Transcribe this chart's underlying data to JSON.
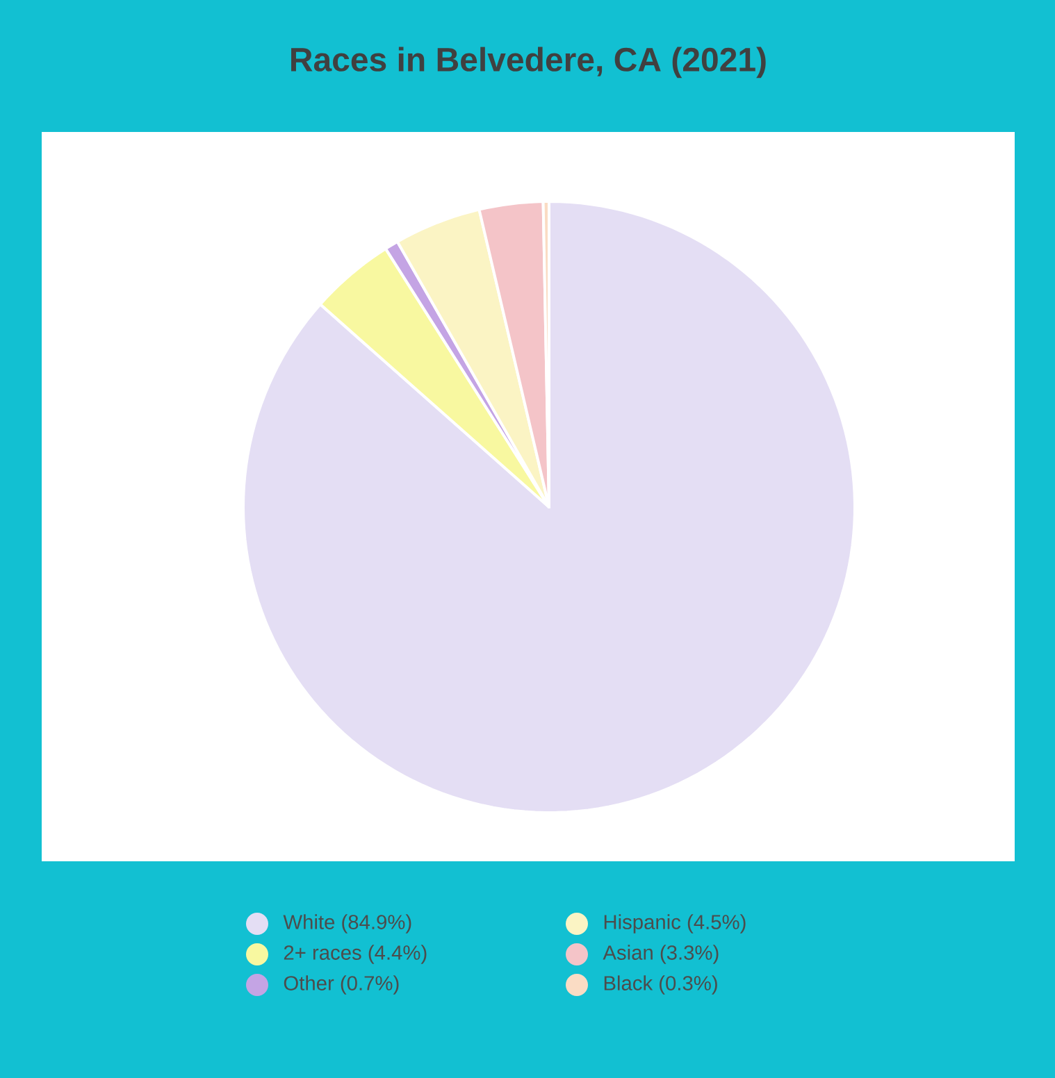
{
  "chart_data": {
    "type": "pie",
    "title": "Races in Belvedere, CA (2021)",
    "categories": [
      "White (84.9%)",
      "2+ races (4.4%)",
      "Other (0.7%)",
      "Hispanic (4.5%)",
      "Asian (3.3%)",
      "Black (0.3%)"
    ],
    "values": [
      84.9,
      4.4,
      0.7,
      4.5,
      3.3,
      0.3
    ],
    "colors": [
      "#e4def4",
      "#f8f8a0",
      "#c4a4e4",
      "#fbf4c4",
      "#f4c4c8",
      "#fadcc4"
    ],
    "legend": "bottom"
  }
}
